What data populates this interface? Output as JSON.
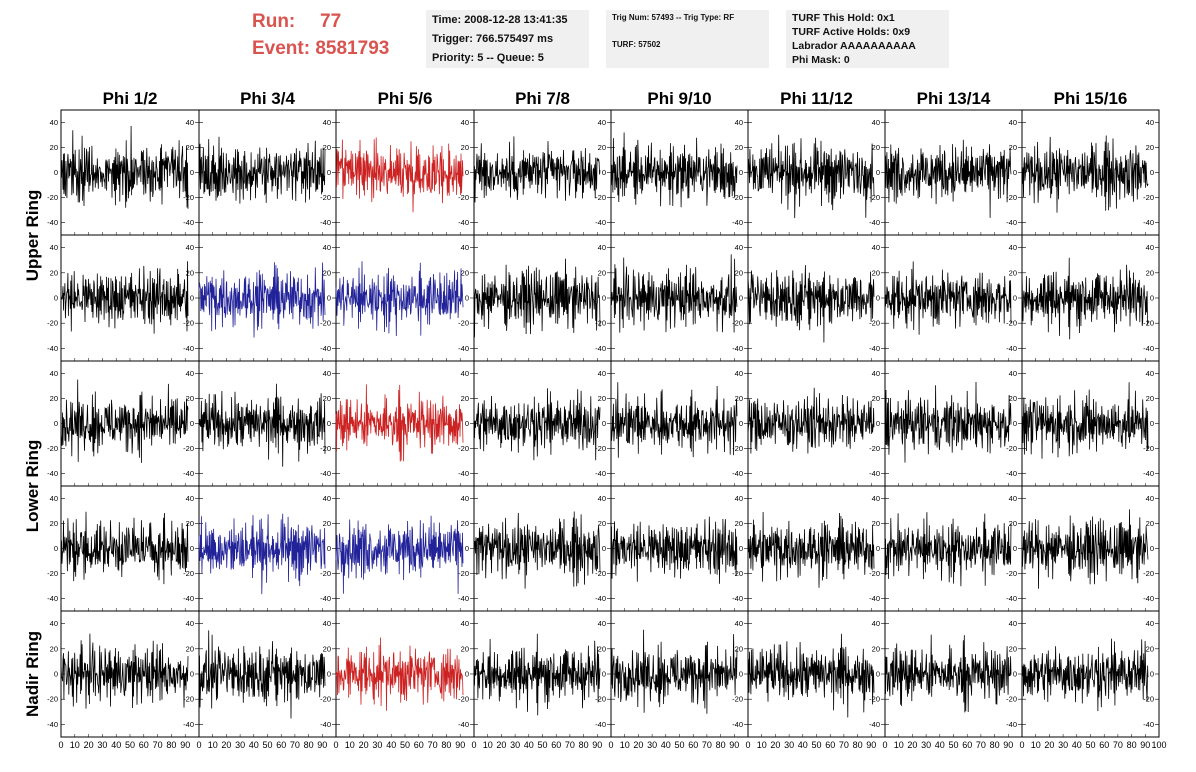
{
  "header": {
    "run_label": "Run:",
    "run_value": "77",
    "event_label": "Event:",
    "event_value": "8581793",
    "time_line": "Time: 2008-12-28 13:41:35",
    "trigger_line": "Trigger: 766.575497 ms",
    "priority_line": "Priority: 5 -- Queue: 5",
    "trig_num_line": "Trig Num: 57493 -- Trig Type: RF",
    "turf_line": "TURF: 57502",
    "turf_hold_line": "TURF This Hold: 0x1",
    "turf_active_line": "TURF Active Holds: 0x9",
    "labrador_line": "Labrador AAAAAAAAAA",
    "phi_mask_line": "Phi Mask: 0"
  },
  "chart_data": {
    "type": "line",
    "column_titles": [
      "Phi 1/2",
      "Phi 3/4",
      "Phi 5/6",
      "Phi 7/8",
      "Phi 9/10",
      "Phi 11/12",
      "Phi 13/14",
      "Phi 15/16"
    ],
    "ring_labels": [
      "Upper Ring",
      "Lower Ring",
      "Nadir Ring"
    ],
    "rows": 5,
    "cols": 8,
    "xlim": [
      0,
      100
    ],
    "ylim": [
      -50,
      50
    ],
    "yticks": [
      -40,
      -20,
      0,
      20,
      40
    ],
    "xtick_labels": [
      "0",
      "10",
      "20",
      "30",
      "40",
      "50",
      "60",
      "70",
      "80",
      "90",
      "100"
    ],
    "colors": {
      "normal": "#000000",
      "triggered_red": "#cc2222",
      "triggered_blue": "#222299"
    },
    "highlighted_panels": [
      {
        "row": 0,
        "col": 2,
        "color": "triggered_red"
      },
      {
        "row": 1,
        "col": 1,
        "color": "triggered_blue"
      },
      {
        "row": 1,
        "col": 2,
        "color": "triggered_blue"
      },
      {
        "row": 2,
        "col": 2,
        "color": "triggered_red"
      },
      {
        "row": 3,
        "col": 1,
        "color": "triggered_blue"
      },
      {
        "row": 3,
        "col": 2,
        "color": "triggered_blue"
      },
      {
        "row": 4,
        "col": 2,
        "color": "triggered_red"
      }
    ],
    "waveform_samples_per_panel": 260,
    "waveform_amplitude_approx": 20,
    "waveform_x_end": 92
  }
}
